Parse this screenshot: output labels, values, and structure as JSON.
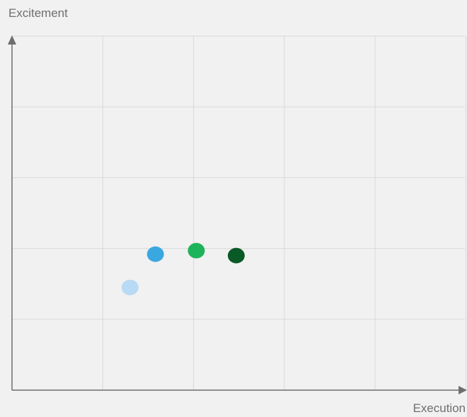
{
  "chart_data": {
    "type": "scatter",
    "title": "",
    "xlabel": "Execution",
    "ylabel": "Excitement",
    "xlim": [
      0,
      5
    ],
    "ylim": [
      0,
      5
    ],
    "grid": true,
    "points": [
      {
        "x": 1.3,
        "y": 1.45,
        "color": "#b8daf4"
      },
      {
        "x": 1.58,
        "y": 1.92,
        "color": "#3aa8e0"
      },
      {
        "x": 2.03,
        "y": 1.97,
        "color": "#1db35a"
      },
      {
        "x": 2.47,
        "y": 1.9,
        "color": "#0a5a28"
      }
    ]
  },
  "colors": {
    "grid": "#d9d9d9",
    "axis": "#6e6e6e",
    "background": "#f1f1f1"
  }
}
